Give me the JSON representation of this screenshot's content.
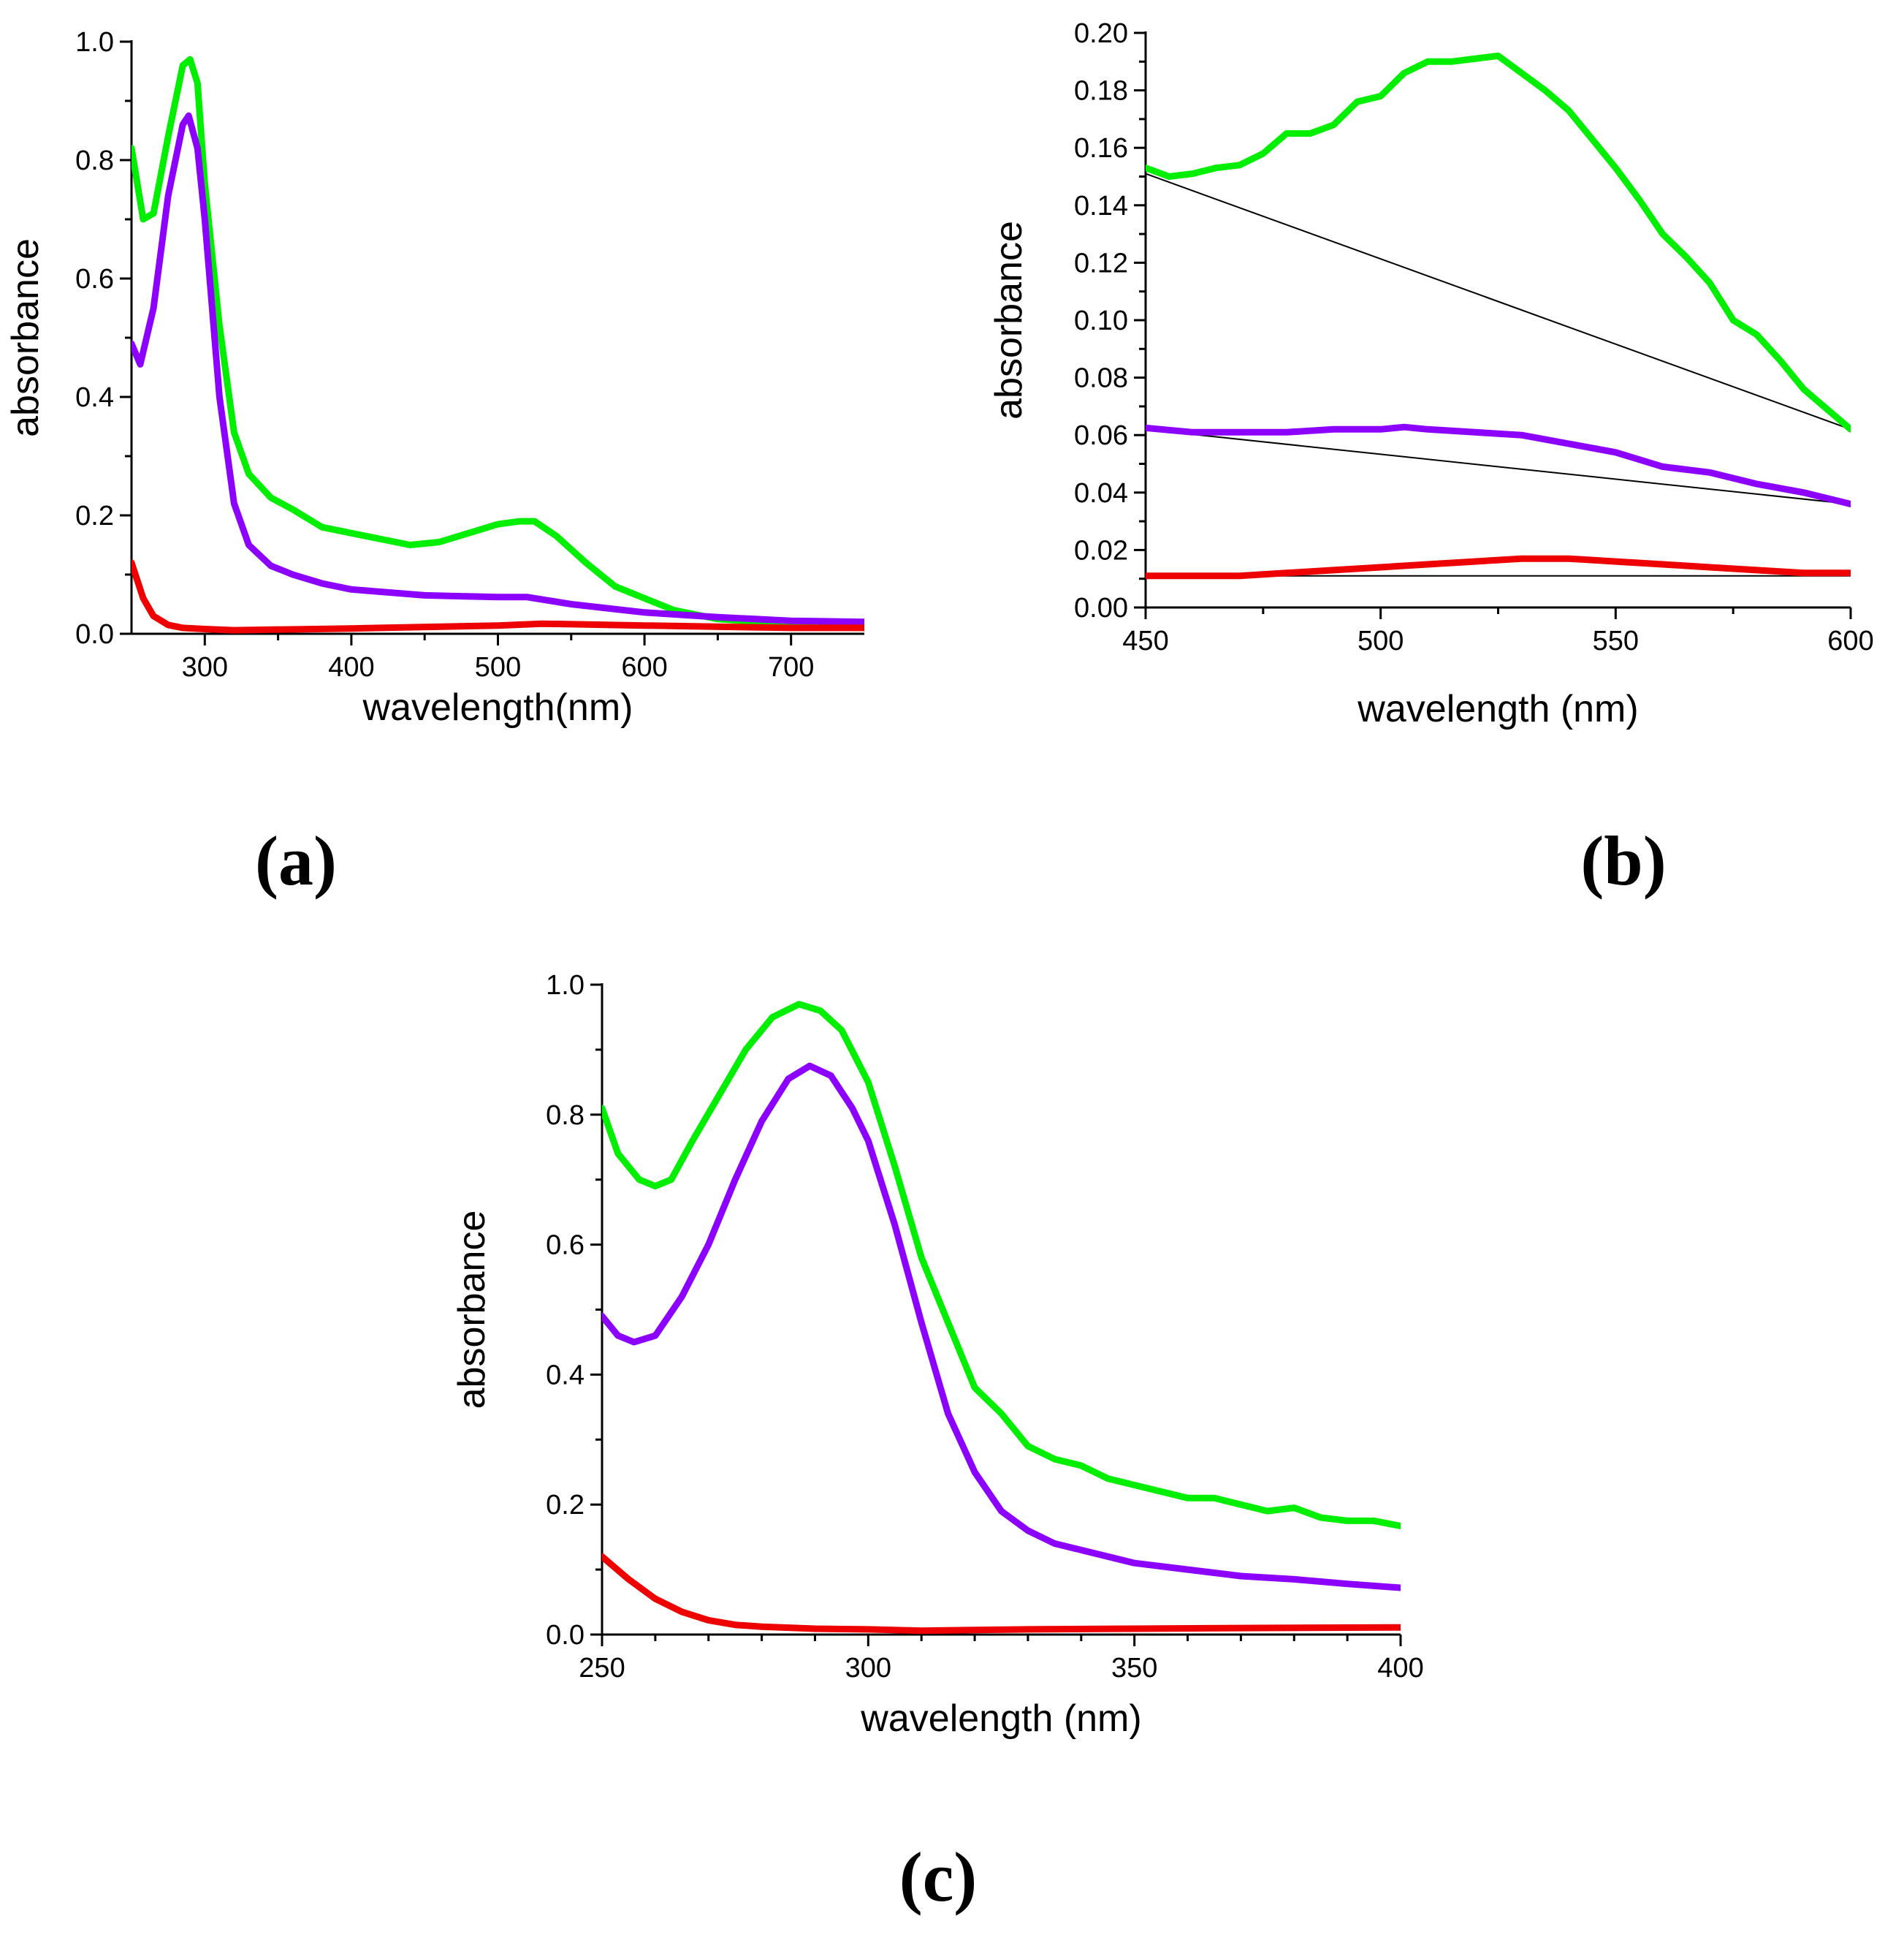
{
  "colors": {
    "green": "#00ee00",
    "violet": "#8c00ff",
    "red": "#ee0000",
    "black": "#000000"
  },
  "chart_data": [
    {
      "id": "a",
      "panel_label": "(a)",
      "type": "line",
      "xlabel": "wavelength(nm)",
      "ylabel": "absorbance",
      "xlim": [
        250,
        750
      ],
      "ylim": [
        0.0,
        1.0
      ],
      "xticks": [
        300,
        400,
        500,
        600,
        700
      ],
      "xtick_labels": [
        "300",
        "400",
        "500",
        "600",
        "700"
      ],
      "yticks": [
        0.0,
        0.2,
        0.4,
        0.6,
        0.8,
        1.0
      ],
      "ytick_labels": [
        "0.0",
        "0.2",
        "0.4",
        "0.6",
        "0.8",
        "1.0"
      ],
      "series": [
        {
          "name": "green",
          "color": "#00ee00",
          "x": [
            250,
            258,
            265,
            275,
            285,
            290,
            295,
            300,
            310,
            320,
            330,
            345,
            360,
            380,
            400,
            420,
            440,
            460,
            480,
            500,
            515,
            525,
            540,
            560,
            580,
            600,
            620,
            650,
            680,
            700,
            720,
            750
          ],
          "y": [
            0.82,
            0.7,
            0.71,
            0.84,
            0.96,
            0.97,
            0.93,
            0.76,
            0.52,
            0.34,
            0.27,
            0.23,
            0.21,
            0.18,
            0.17,
            0.16,
            0.15,
            0.155,
            0.17,
            0.185,
            0.19,
            0.19,
            0.165,
            0.12,
            0.08,
            0.06,
            0.04,
            0.025,
            0.02,
            0.015,
            0.012,
            0.01
          ]
        },
        {
          "name": "violet",
          "color": "#8c00ff",
          "x": [
            250,
            256,
            265,
            275,
            285,
            289,
            295,
            300,
            310,
            320,
            330,
            345,
            360,
            380,
            400,
            450,
            500,
            520,
            550,
            600,
            650,
            700,
            750
          ],
          "y": [
            0.49,
            0.455,
            0.55,
            0.74,
            0.86,
            0.875,
            0.82,
            0.7,
            0.4,
            0.22,
            0.15,
            0.115,
            0.1,
            0.085,
            0.075,
            0.065,
            0.062,
            0.062,
            0.05,
            0.036,
            0.028,
            0.022,
            0.02
          ]
        },
        {
          "name": "red",
          "color": "#ee0000",
          "x": [
            250,
            258,
            265,
            275,
            285,
            300,
            320,
            400,
            500,
            530,
            600,
            700,
            750
          ],
          "y": [
            0.12,
            0.06,
            0.03,
            0.015,
            0.01,
            0.008,
            0.006,
            0.009,
            0.014,
            0.017,
            0.014,
            0.01,
            0.01
          ]
        }
      ]
    },
    {
      "id": "b",
      "panel_label": "(b)",
      "type": "line",
      "xlabel": "wavelength (nm)",
      "ylabel": "absorbance",
      "xlim": [
        450,
        600
      ],
      "ylim": [
        0.0,
        0.2
      ],
      "xticks": [
        450,
        500,
        550,
        600
      ],
      "xtick_labels": [
        "450",
        "500",
        "550",
        "600"
      ],
      "yticks": [
        0.0,
        0.02,
        0.04,
        0.06,
        0.08,
        0.1,
        0.12,
        0.14,
        0.16,
        0.18,
        0.2
      ],
      "ytick_labels": [
        "0.00",
        "0.02",
        "0.04",
        "0.06",
        "0.08",
        "0.10",
        "0.12",
        "0.14",
        "0.16",
        "0.18",
        "0.20"
      ],
      "series": [
        {
          "name": "green",
          "color": "#00ee00",
          "x": [
            450,
            455,
            460,
            465,
            470,
            475,
            480,
            485,
            490,
            495,
            500,
            505,
            510,
            515,
            520,
            525,
            530,
            535,
            540,
            545,
            550,
            555,
            560,
            565,
            570,
            575,
            580,
            585,
            590,
            595,
            600
          ],
          "y": [
            0.153,
            0.15,
            0.151,
            0.153,
            0.154,
            0.158,
            0.165,
            0.165,
            0.168,
            0.176,
            0.178,
            0.186,
            0.19,
            0.19,
            0.191,
            0.192,
            0.186,
            0.18,
            0.173,
            0.163,
            0.153,
            0.142,
            0.13,
            0.122,
            0.113,
            0.1,
            0.095,
            0.086,
            0.076,
            0.069,
            0.062
          ]
        },
        {
          "name": "violet",
          "color": "#8c00ff",
          "x": [
            450,
            460,
            470,
            480,
            490,
            500,
            505,
            510,
            520,
            530,
            540,
            550,
            560,
            570,
            580,
            590,
            600
          ],
          "y": [
            0.0625,
            0.061,
            0.061,
            0.061,
            0.062,
            0.062,
            0.0628,
            0.062,
            0.061,
            0.06,
            0.057,
            0.054,
            0.049,
            0.047,
            0.043,
            0.04,
            0.036
          ]
        },
        {
          "name": "red",
          "color": "#ee0000",
          "x": [
            450,
            460,
            470,
            480,
            490,
            500,
            510,
            520,
            530,
            540,
            550,
            560,
            570,
            580,
            590,
            600
          ],
          "y": [
            0.011,
            0.011,
            0.011,
            0.012,
            0.013,
            0.014,
            0.015,
            0.016,
            0.017,
            0.017,
            0.016,
            0.015,
            0.014,
            0.013,
            0.012,
            0.012
          ]
        }
      ],
      "baselines": [
        {
          "x": [
            450,
            600
          ],
          "y": [
            0.151,
            0.062
          ]
        },
        {
          "x": [
            450,
            600
          ],
          "y": [
            0.062,
            0.036
          ]
        },
        {
          "x": [
            450,
            600
          ],
          "y": [
            0.011,
            0.011
          ]
        }
      ]
    },
    {
      "id": "c",
      "panel_label": "(c)",
      "type": "line",
      "xlabel": "wavelength (nm)",
      "ylabel": "absorbance",
      "xlim": [
        250,
        400
      ],
      "ylim": [
        0.0,
        1.0
      ],
      "xticks": [
        250,
        300,
        350,
        400
      ],
      "xtick_labels": [
        "250",
        "300",
        "350",
        "400"
      ],
      "yticks": [
        0.0,
        0.2,
        0.4,
        0.6,
        0.8,
        1.0
      ],
      "ytick_labels": [
        "0.0",
        "0.2",
        "0.4",
        "0.6",
        "0.8",
        "1.0"
      ],
      "series": [
        {
          "name": "green",
          "color": "#00ee00",
          "x": [
            250,
            253,
            257,
            260,
            263,
            267,
            272,
            277,
            282,
            287,
            291,
            295,
            300,
            305,
            310,
            315,
            320,
            325,
            330,
            335,
            340,
            345,
            350,
            355,
            360,
            365,
            370,
            375,
            380,
            385,
            390,
            395,
            400
          ],
          "y": [
            0.81,
            0.74,
            0.7,
            0.69,
            0.7,
            0.76,
            0.83,
            0.9,
            0.95,
            0.97,
            0.96,
            0.93,
            0.85,
            0.72,
            0.58,
            0.48,
            0.38,
            0.34,
            0.29,
            0.27,
            0.26,
            0.24,
            0.23,
            0.22,
            0.21,
            0.21,
            0.2,
            0.19,
            0.195,
            0.18,
            0.175,
            0.175,
            0.167
          ]
        },
        {
          "name": "violet",
          "color": "#8c00ff",
          "x": [
            250,
            253,
            256,
            260,
            265,
            270,
            275,
            280,
            285,
            289,
            293,
            297,
            300,
            305,
            310,
            315,
            320,
            325,
            330,
            335,
            340,
            350,
            360,
            370,
            380,
            390,
            400
          ],
          "y": [
            0.49,
            0.46,
            0.45,
            0.46,
            0.52,
            0.6,
            0.7,
            0.79,
            0.855,
            0.875,
            0.86,
            0.81,
            0.76,
            0.63,
            0.48,
            0.34,
            0.25,
            0.19,
            0.16,
            0.14,
            0.13,
            0.11,
            0.1,
            0.09,
            0.085,
            0.078,
            0.072
          ]
        },
        {
          "name": "red",
          "color": "#ee0000",
          "x": [
            250,
            255,
            260,
            265,
            270,
            275,
            280,
            290,
            300,
            310,
            320,
            330,
            350,
            370,
            400
          ],
          "y": [
            0.12,
            0.085,
            0.055,
            0.035,
            0.022,
            0.015,
            0.012,
            0.009,
            0.008,
            0.006,
            0.007,
            0.008,
            0.009,
            0.01,
            0.011
          ]
        }
      ]
    }
  ]
}
